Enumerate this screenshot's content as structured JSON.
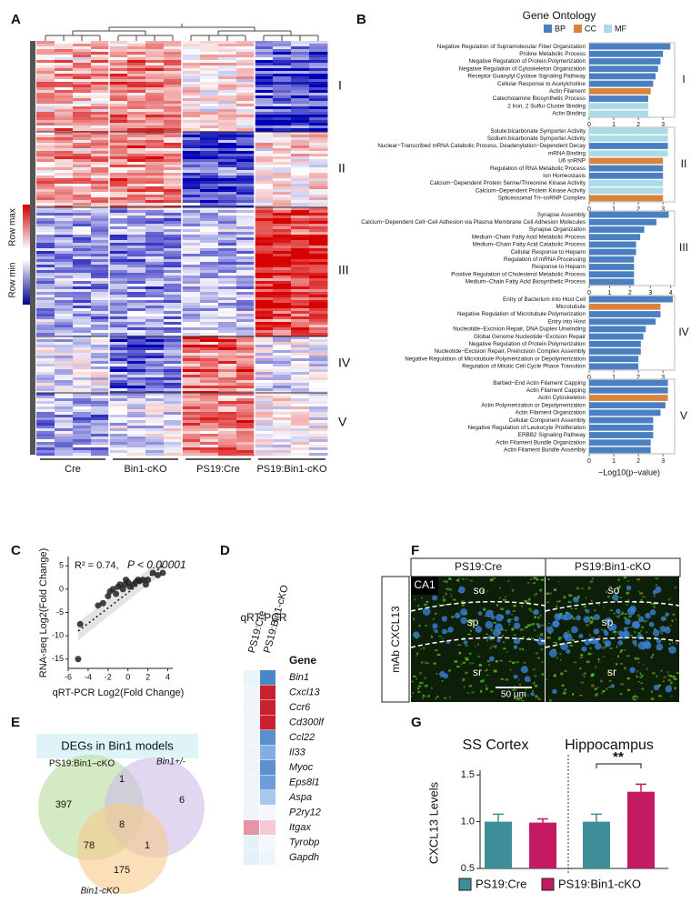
{
  "panel_labels": [
    "A",
    "B",
    "C",
    "D",
    "E",
    "F",
    "G"
  ],
  "heatmap": {
    "legend_max": "Row max",
    "legend_min": "Row min",
    "cluster_labels": [
      "I",
      "II",
      "III",
      "IV",
      "V"
    ],
    "group_labels": [
      "Cre",
      "Bin1-cKO",
      "PS19:Cre",
      "PS19:Bin1-cKO"
    ]
  },
  "gene_ontology": {
    "title": "Gene Ontology",
    "legend": [
      {
        "name": "BP",
        "color": "#4a7fc1"
      },
      {
        "name": "CC",
        "color": "#d9843c"
      },
      {
        "name": "MF",
        "color": "#acdbe8"
      }
    ],
    "x_label": "−Log10(p−value)"
  },
  "chart_data": [
    {
      "type": "bar",
      "orientation": "horizontal",
      "label": "I",
      "categories": [
        "Negative Regulation of Supramolecular Fiber Organization",
        "Proline Metabolic Process",
        "Negative Regulation of Protein Polymerization",
        "Negative Regulation of Cytoskeleton Organization",
        "Receptor Guanylyl Cyclase Signaling Pathway",
        "Cellular Response to Acetylcholine",
        "Actin Filament",
        "Catecholamine Biosynthetic Process",
        "2 Iron, 2 Sulfur Cluster Binding",
        "Actin Binding"
      ],
      "values": [
        3.3,
        3.0,
        2.9,
        2.8,
        2.7,
        2.6,
        2.5,
        2.4,
        2.4,
        2.4
      ],
      "colors": [
        "#4a7fc1",
        "#4a7fc1",
        "#4a7fc1",
        "#4a7fc1",
        "#4a7fc1",
        "#4a7fc1",
        "#d9843c",
        "#4a7fc1",
        "#acdbe8",
        "#acdbe8"
      ],
      "xlim": [
        0,
        3.4
      ],
      "xticks": [
        0,
        1,
        2,
        3
      ]
    },
    {
      "type": "bar",
      "orientation": "horizontal",
      "label": "II",
      "categories": [
        "Solute:bicarbonate Symporter Activity",
        "Sodium:bicarbonate Symporter Activity",
        "Nuclear−Transcribed mRNA Catabolic Process, Deadenylation−Dependent Decay",
        "mRNA Binding",
        "U6 snRNP",
        "Regulation of RNA Metabolic Process",
        "Ion Homeostasis",
        "Calcium−Dependent Protein Serine/Threonine Kinase Activity",
        "Calcium−Dependent Protein Kinase Activity",
        "Spliceosomal Tri−snRNP Complex"
      ],
      "values": [
        3.2,
        3.2,
        3.2,
        3.2,
        3.0,
        3.0,
        3.0,
        3.0,
        3.0,
        3.0
      ],
      "colors": [
        "#acdbe8",
        "#acdbe8",
        "#4a7fc1",
        "#acdbe8",
        "#d9843c",
        "#4a7fc1",
        "#4a7fc1",
        "#acdbe8",
        "#acdbe8",
        "#d9843c"
      ],
      "xlim": [
        0,
        3.4
      ],
      "xticks": [
        0,
        1,
        2,
        3
      ]
    },
    {
      "type": "bar",
      "orientation": "horizontal",
      "label": "III",
      "categories": [
        "Synapse Assembly",
        "Calcium−Dependent Cell−Cell Adhesion via Plasma Membrane Cell Adhesion Molecules",
        "Synapse Organization",
        "Medium−Chain Fatty Acid Metabolic Process",
        "Medium−Chain Fatty Acid Catabolic Process",
        "Cellular Response to Heparin",
        "Regulation of mRNA Processing",
        "Response to Heparin",
        "Positive Regulation of Cholesterol Metabolic Process",
        "Medium−Chain Fatty Acid Biosynthetic Process"
      ],
      "values": [
        3.9,
        3.3,
        2.7,
        2.5,
        2.3,
        2.3,
        2.2,
        2.2,
        2.2,
        2.2
      ],
      "colors": [
        "#4a7fc1",
        "#4a7fc1",
        "#4a7fc1",
        "#4a7fc1",
        "#4a7fc1",
        "#4a7fc1",
        "#4a7fc1",
        "#4a7fc1",
        "#4a7fc1",
        "#4a7fc1"
      ],
      "xlim": [
        0,
        4.1
      ],
      "xticks": [
        0,
        1,
        2,
        3,
        4
      ]
    },
    {
      "type": "bar",
      "orientation": "horizontal",
      "label": "IV",
      "categories": [
        "Entry of Bacterium into Host Cell",
        "Microtubule",
        "Negative Regulation of Microtubule Polymerization",
        "Entry into Host",
        "Nucleotide−Excision Repair, DNA Duplex Unwinding",
        "Global Genome Nucleotide−Excision Repair",
        "Negative Regulation of Protein Polymerization",
        "Nucleotide−Excision Repair, Preincision Complex Assembly",
        "Negative Regulation of Microtubule Polymerization or Depolymerization",
        "Regulation of Mitotic Cell Cycle Phase Transition"
      ],
      "values": [
        3.4,
        2.9,
        2.9,
        2.7,
        2.3,
        2.2,
        2.1,
        2.1,
        2.0,
        2.0
      ],
      "colors": [
        "#4a7fc1",
        "#d9843c",
        "#4a7fc1",
        "#4a7fc1",
        "#4a7fc1",
        "#4a7fc1",
        "#4a7fc1",
        "#4a7fc1",
        "#4a7fc1",
        "#4a7fc1"
      ],
      "xlim": [
        0,
        3.4
      ],
      "xticks": [
        0,
        1,
        2,
        3
      ]
    },
    {
      "type": "bar",
      "orientation": "horizontal",
      "label": "V",
      "categories": [
        "Barbed−End Actin Filament Capping",
        "Actin Filament Capping",
        "Actin Cytoskeleton",
        "Actin Polymerization or Depolymerization",
        "Actin Filament Organization",
        "Cellular Component Assembly",
        "Negative Regulation of Leukocyte Proliferation",
        "ERBB2 Signaling Pathway",
        "Actin Filament Bundle Organization",
        "Actin Filament Bundle Assembly"
      ],
      "values": [
        3.2,
        3.2,
        3.2,
        3.1,
        2.9,
        2.6,
        2.6,
        2.6,
        2.5,
        2.5
      ],
      "colors": [
        "#4a7fc1",
        "#4a7fc1",
        "#d9843c",
        "#4a7fc1",
        "#4a7fc1",
        "#4a7fc1",
        "#4a7fc1",
        "#4a7fc1",
        "#4a7fc1",
        "#4a7fc1"
      ],
      "xlim": [
        0,
        3.4
      ],
      "xticks": [
        0,
        1,
        2,
        3
      ]
    },
    {
      "type": "scatter",
      "annotations": [
        "R² = 0.74,",
        "P < 0.00001"
      ],
      "x_label": "qRT-PCR Log2(Fold Change)",
      "y_label": "RNA-seq Log2(Fold Change)",
      "color": "#222222",
      "x": [
        -5,
        -4.8,
        -3,
        -2.5,
        -2,
        -1.8,
        -1.5,
        -1.2,
        -1,
        -0.8,
        -0.5,
        -0.3,
        -0.2,
        0,
        0.2,
        0.5,
        0.8,
        1,
        1.2,
        1.5,
        1.8,
        2,
        2.5,
        3,
        3.5
      ],
      "values": [
        -15,
        -7.5,
        -3.5,
        -3,
        -1.5,
        -0.5,
        0,
        -1,
        0.5,
        1,
        0,
        1,
        2,
        1.5,
        0.5,
        1,
        1.5,
        2,
        1.8,
        2,
        1,
        2,
        3.5,
        3,
        3.5
      ],
      "fit_line": {
        "x": [
          -5,
          3.5
        ],
        "y": [
          -9,
          5
        ]
      },
      "xlim": [
        -6,
        4.5
      ],
      "ylim": [
        -17,
        7
      ],
      "xticks": [
        -6,
        -4,
        -2,
        0,
        2,
        4
      ],
      "yticks": [
        -15,
        -10,
        -5,
        0,
        5
      ]
    },
    {
      "type": "bar",
      "title_left": "SS Cortex",
      "title_right": "Hippocampus",
      "significance": "**",
      "y_label": "CXCL13 Levels",
      "categories": [
        "SS Cortex",
        "Hippocampus"
      ],
      "series": [
        {
          "name": "PS19:Cre",
          "color": "#3e8e99",
          "values": [
            1.0,
            1.0
          ],
          "errors": [
            0.08,
            0.08
          ]
        },
        {
          "name": "PS19:Bin1-cKO",
          "color": "#c31a61",
          "values": [
            0.99,
            1.32
          ],
          "errors": [
            0.04,
            0.08
          ]
        }
      ],
      "ylim": [
        0.5,
        1.55
      ],
      "yticks": [
        0.5,
        {
          "value": 1,
          "label": "1.0"
        },
        1.5
      ]
    }
  ],
  "venn": {
    "title": "DEGs in Bin1 models",
    "sets": [
      "PS19:Bin1–cKO",
      "Bin1+/-",
      "Bin1-cKO"
    ],
    "regions": [
      397,
      1,
      6,
      8,
      78,
      1,
      175
    ]
  },
  "qrt_pcr": {
    "title": "qRT-PCR",
    "columns": [
      "PS19:Cre",
      "PS19:Bin1-cKO"
    ],
    "gene_header": "Gene",
    "genes": [
      "Bin1",
      "Cxcl13",
      "Ccr6",
      "Cd300lf",
      "Ccl22",
      "Il33",
      "Myoc",
      "Eps8l1",
      "Aspa",
      "P2ry12",
      "Itgax",
      "Tyrobp",
      "Gapdh"
    ],
    "cell_colors": [
      [
        "#e8f4fa",
        "#4a86c8"
      ],
      [
        "#eef6fb",
        "#c8202f"
      ],
      [
        "#eef6fb",
        "#c8202f"
      ],
      [
        "#eef6fb",
        "#c8202f"
      ],
      [
        "#eef6fb",
        "#5b8fd0"
      ],
      [
        "#eef6fb",
        "#84aee0"
      ],
      [
        "#eef6fb",
        "#5b8fd0"
      ],
      [
        "#eef6fb",
        "#6d9ed8"
      ],
      [
        "#eef6fb",
        "#a8c8ec"
      ],
      [
        "#eef6fb",
        "#f4f8fc"
      ],
      [
        "#e892a5",
        "#f7c9d4"
      ],
      [
        "#e3f1f9",
        "#f4f8fc"
      ],
      [
        "#e3f1f9",
        "#eef6fb"
      ]
    ]
  },
  "microscopy": {
    "columns": [
      "PS19:Cre",
      "PS19:Bin1-cKO"
    ],
    "stain": "mAb CXCL13",
    "region": "CA1",
    "layers_left": [
      "so",
      "sp",
      "sr"
    ],
    "layers_right": [
      "so",
      "sp",
      "sr"
    ],
    "scale_bar": "50 μm"
  }
}
